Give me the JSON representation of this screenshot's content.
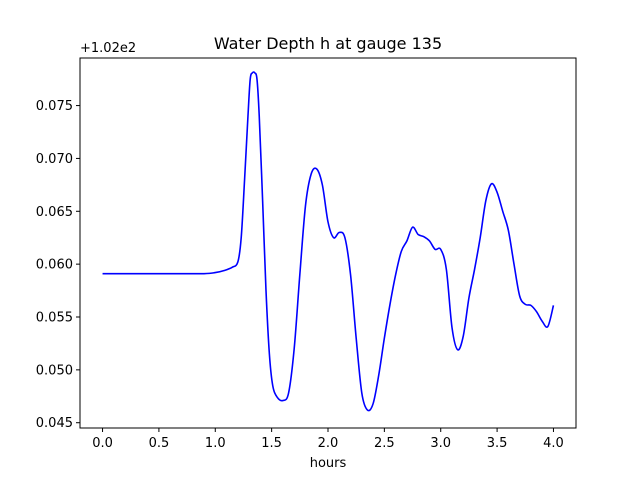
{
  "chart_data": {
    "type": "line",
    "title": "Water Depth h at gauge 135",
    "xlabel": "hours",
    "ylabel": "",
    "y_offset_label": "+1.02e2",
    "y_offset": 102,
    "xlim": [
      -0.2,
      4.2
    ],
    "ylim": [
      0.0445,
      0.0795
    ],
    "xticks": [
      0.0,
      0.5,
      1.0,
      1.5,
      2.0,
      2.5,
      3.0,
      3.5,
      4.0
    ],
    "xtick_labels": [
      "0.0",
      "0.5",
      "1.0",
      "1.5",
      "2.0",
      "2.5",
      "3.0",
      "3.5",
      "4.0"
    ],
    "yticks": [
      0.045,
      0.05,
      0.055,
      0.06,
      0.065,
      0.07,
      0.075
    ],
    "ytick_labels": [
      "0.045",
      "0.050",
      "0.055",
      "0.060",
      "0.065",
      "0.070",
      "0.075"
    ],
    "grid": false,
    "line_color": "#0000ff",
    "series": [
      {
        "x": [
          0.0,
          0.3,
          0.6,
          0.9,
          1.0,
          1.08,
          1.15,
          1.2,
          1.23,
          1.26,
          1.29,
          1.31,
          1.33,
          1.35,
          1.37,
          1.39,
          1.42,
          1.45,
          1.48,
          1.51,
          1.55,
          1.6,
          1.65,
          1.7,
          1.75,
          1.8,
          1.85,
          1.9,
          1.95,
          2.0,
          2.05,
          2.1,
          2.15,
          2.2,
          2.25,
          2.3,
          2.35,
          2.4,
          2.45,
          2.5,
          2.55,
          2.6,
          2.65,
          2.7,
          2.75,
          2.8,
          2.85,
          2.9,
          2.95,
          3.0,
          3.05,
          3.1,
          3.15,
          3.2,
          3.25,
          3.3,
          3.35,
          3.4,
          3.45,
          3.5,
          3.55,
          3.6,
          3.65,
          3.7,
          3.75,
          3.8,
          3.85,
          3.9,
          3.95,
          4.0
        ],
        "y": [
          0.0591,
          0.0591,
          0.0591,
          0.0591,
          0.0592,
          0.0594,
          0.0597,
          0.0602,
          0.0625,
          0.068,
          0.074,
          0.0775,
          0.0781,
          0.0781,
          0.0775,
          0.074,
          0.066,
          0.0575,
          0.0515,
          0.0485,
          0.0474,
          0.0471,
          0.0478,
          0.052,
          0.059,
          0.0655,
          0.0685,
          0.069,
          0.0675,
          0.064,
          0.0625,
          0.063,
          0.0625,
          0.059,
          0.053,
          0.0478,
          0.0462,
          0.0468,
          0.0495,
          0.053,
          0.0562,
          0.059,
          0.0612,
          0.0622,
          0.0635,
          0.0628,
          0.0626,
          0.0622,
          0.0614,
          0.0614,
          0.0595,
          0.054,
          0.0519,
          0.0532,
          0.0568,
          0.0595,
          0.0625,
          0.066,
          0.0676,
          0.0668,
          0.065,
          0.0632,
          0.06,
          0.057,
          0.0562,
          0.0561,
          0.0555,
          0.0546,
          0.0541,
          0.0561
        ]
      }
    ]
  }
}
